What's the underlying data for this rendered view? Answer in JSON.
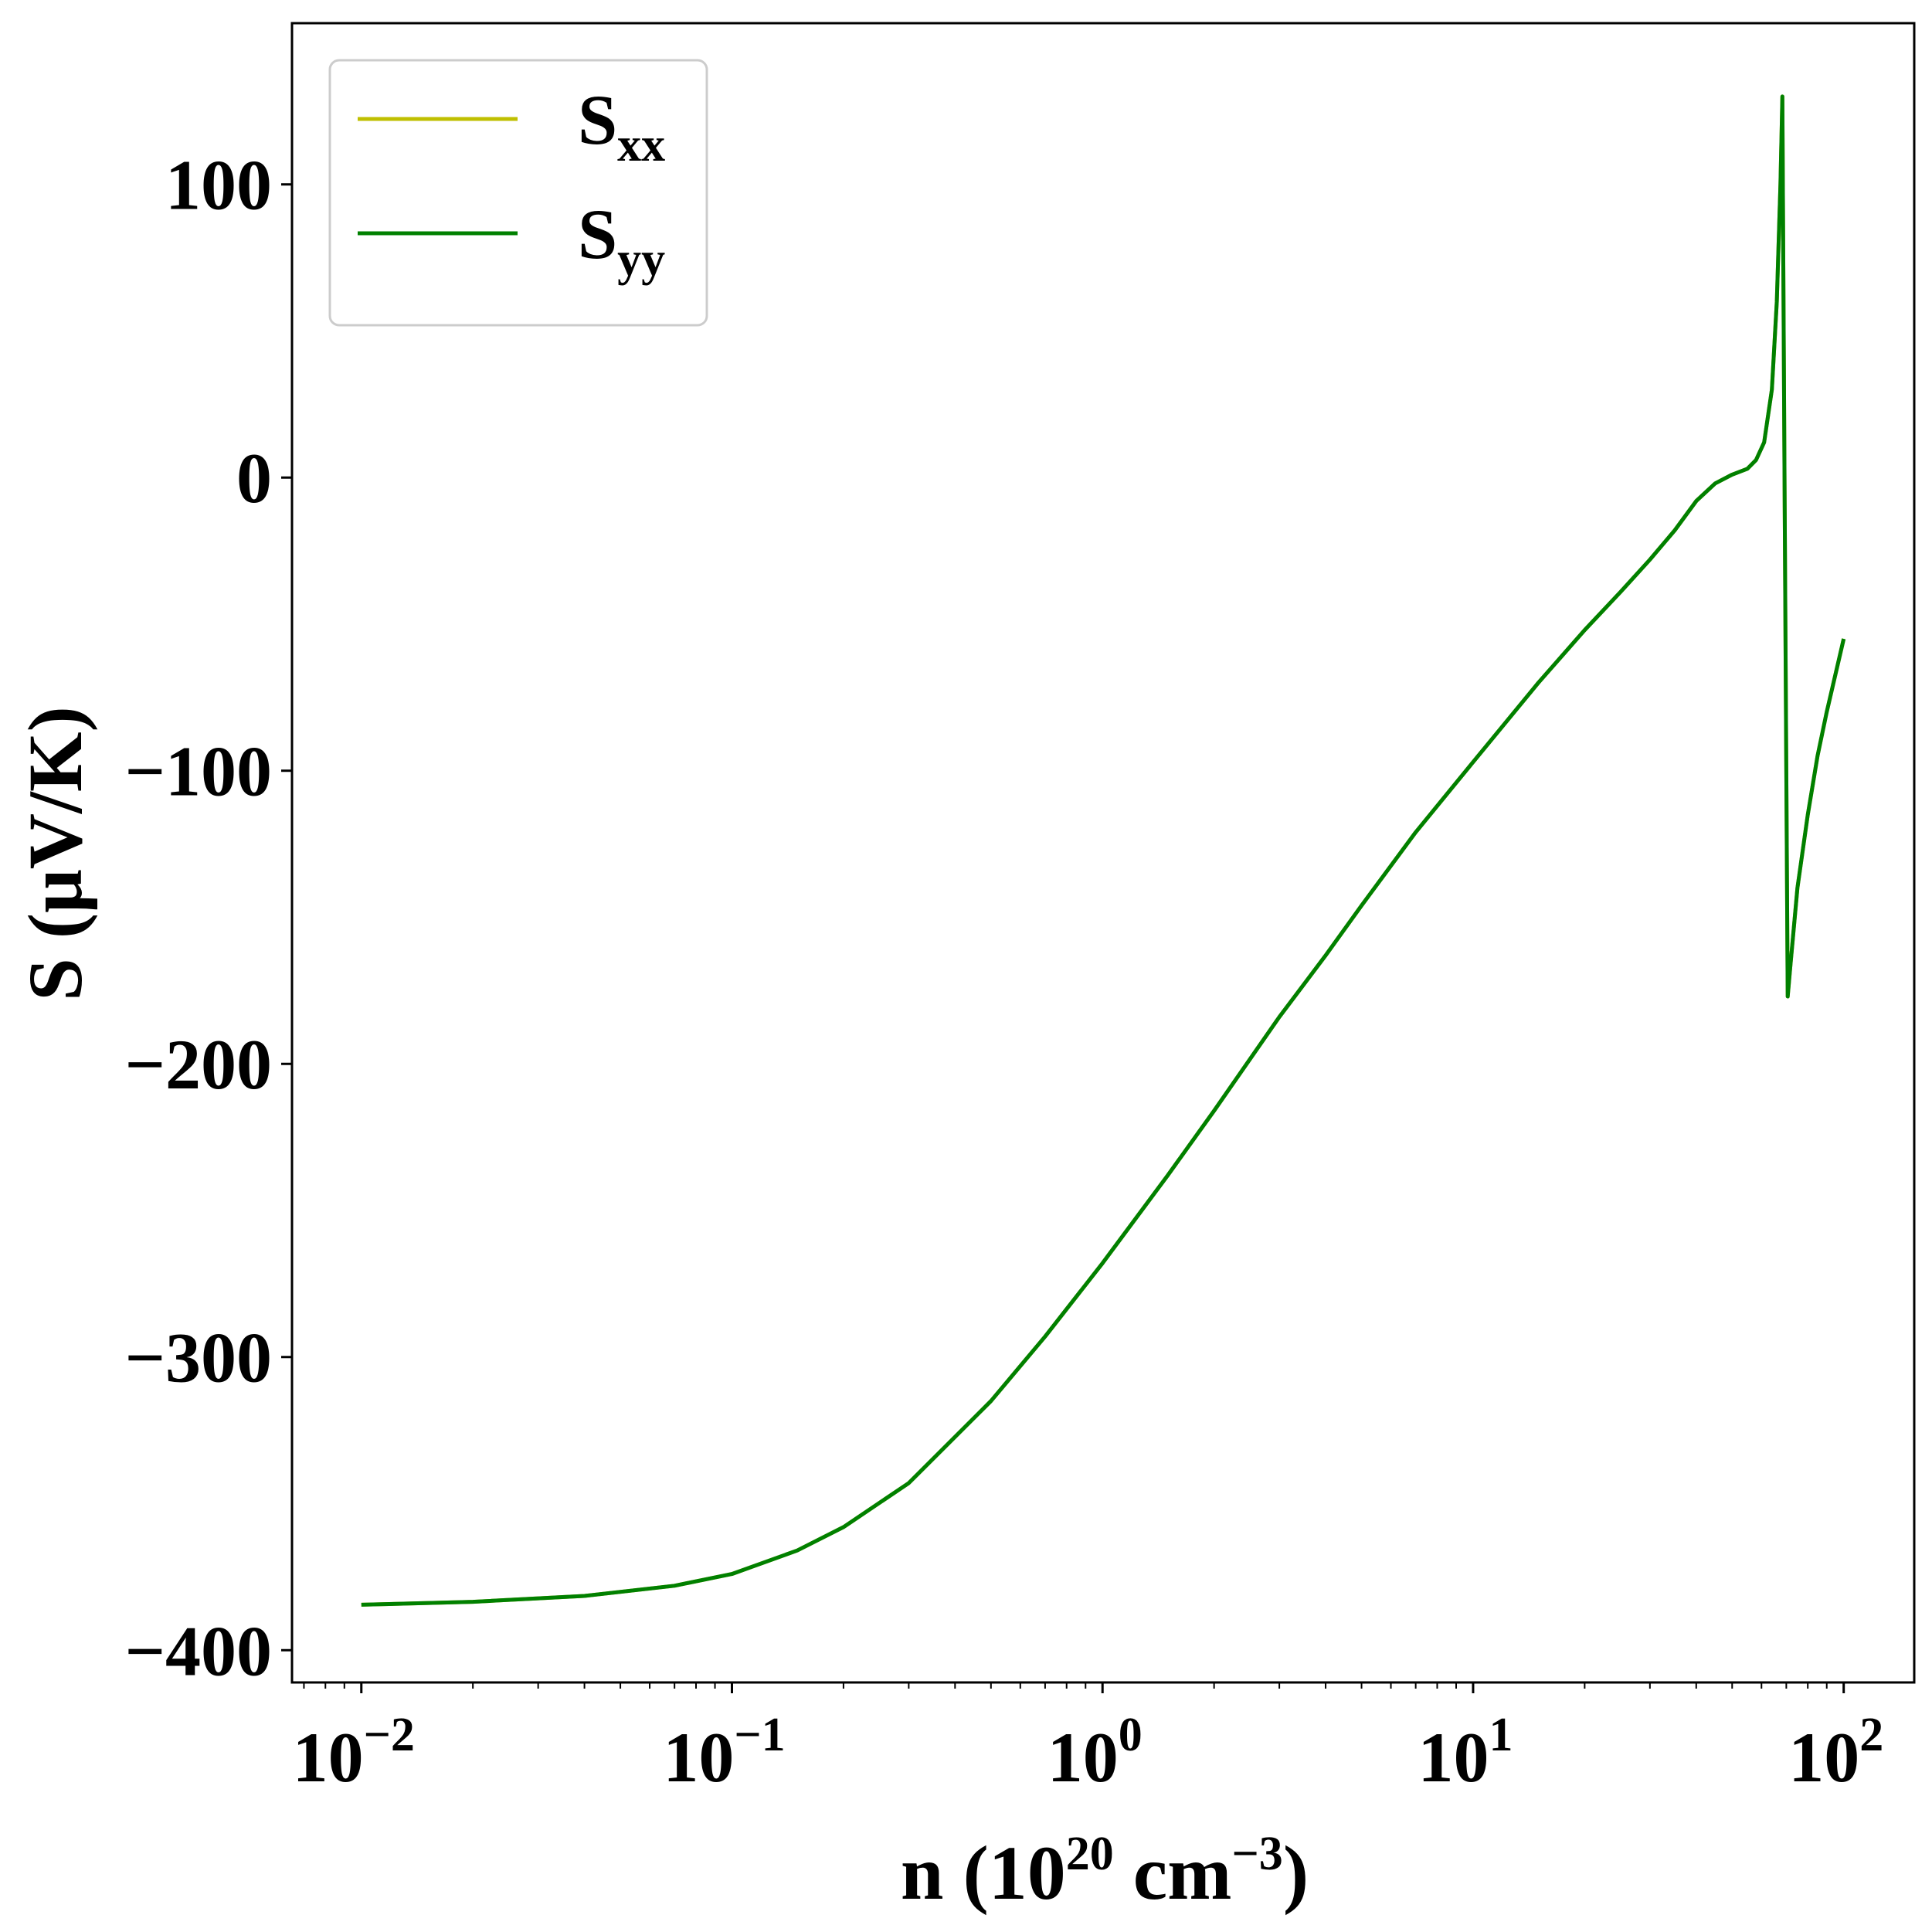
{
  "chart_data": {
    "type": "line",
    "xscale": "log",
    "xlim": [
      0.0065,
      155
    ],
    "ylim": [
      -411,
      155
    ],
    "xlabel": {
      "pre": "n (10",
      "sup1": "20",
      "mid": " cm",
      "sup2": "−3",
      "post": ")"
    },
    "ylabel": "S (μV/K)",
    "x_ticks": [
      {
        "value": 0.01,
        "base": "10",
        "exp": "−2"
      },
      {
        "value": 0.1,
        "base": "10",
        "exp": "−1"
      },
      {
        "value": 1,
        "base": "10",
        "exp": "0"
      },
      {
        "value": 10,
        "base": "10",
        "exp": "1"
      },
      {
        "value": 100,
        "base": "10",
        "exp": "2"
      }
    ],
    "y_ticks": [
      {
        "value": 100,
        "label": "100"
      },
      {
        "value": 0,
        "label": "0"
      },
      {
        "value": -100,
        "label": "−100"
      },
      {
        "value": -200,
        "label": "−200"
      },
      {
        "value": -300,
        "label": "−300"
      },
      {
        "value": -400,
        "label": "−400"
      }
    ],
    "legend": {
      "placement": "top-left"
    },
    "series": [
      {
        "name_main": "S",
        "name_sub": "xx",
        "color": "#bfbf00",
        "points": [
          [
            0.01,
            -384.5
          ],
          [
            0.02,
            -383.5
          ],
          [
            0.04,
            -381.5
          ],
          [
            0.07,
            -378
          ],
          [
            0.1,
            -374
          ],
          [
            0.15,
            -366
          ],
          [
            0.2,
            -358
          ],
          [
            0.3,
            -343
          ],
          [
            0.5,
            -315
          ],
          [
            0.7,
            -293
          ],
          [
            1,
            -268
          ],
          [
            1.5,
            -238
          ],
          [
            2,
            -216
          ],
          [
            3,
            -184
          ],
          [
            4,
            -163
          ],
          [
            5,
            -146
          ],
          [
            7,
            -121
          ],
          [
            10,
            -97
          ],
          [
            15,
            -70
          ],
          [
            20,
            -52
          ],
          [
            25,
            -39
          ],
          [
            30,
            -28
          ],
          [
            35,
            -18
          ],
          [
            40,
            -8
          ],
          [
            45,
            -2
          ],
          [
            50,
            1
          ],
          [
            55,
            3
          ],
          [
            58,
            6
          ],
          [
            61,
            12
          ],
          [
            64,
            30
          ],
          [
            66,
            60
          ],
          [
            67.5,
            100
          ],
          [
            68.3,
            130
          ],
          [
            69.3,
            -10
          ],
          [
            70.6,
            -177
          ],
          [
            72,
            -165
          ],
          [
            75,
            -140
          ],
          [
            80,
            -115
          ],
          [
            85,
            -95
          ],
          [
            90,
            -80
          ],
          [
            100,
            -55
          ]
        ]
      },
      {
        "name_main": "S",
        "name_sub": "yy",
        "color": "#008000",
        "points": [
          [
            0.01,
            -384.5
          ],
          [
            0.02,
            -383.5
          ],
          [
            0.04,
            -381.5
          ],
          [
            0.07,
            -378
          ],
          [
            0.1,
            -374
          ],
          [
            0.15,
            -366
          ],
          [
            0.2,
            -358
          ],
          [
            0.3,
            -343
          ],
          [
            0.5,
            -315
          ],
          [
            0.7,
            -293
          ],
          [
            1,
            -268
          ],
          [
            1.5,
            -238
          ],
          [
            2,
            -216
          ],
          [
            3,
            -184
          ],
          [
            4,
            -163
          ],
          [
            5,
            -146
          ],
          [
            7,
            -121
          ],
          [
            10,
            -97
          ],
          [
            15,
            -70
          ],
          [
            20,
            -52
          ],
          [
            25,
            -39
          ],
          [
            30,
            -28
          ],
          [
            35,
            -18
          ],
          [
            40,
            -8
          ],
          [
            45,
            -2
          ],
          [
            50,
            1
          ],
          [
            55,
            3
          ],
          [
            58,
            6
          ],
          [
            61,
            12
          ],
          [
            64,
            30
          ],
          [
            66,
            60
          ],
          [
            67.5,
            100
          ],
          [
            68.3,
            130
          ],
          [
            69.3,
            -10
          ],
          [
            70.6,
            -177
          ],
          [
            72,
            -165
          ],
          [
            75,
            -140
          ],
          [
            80,
            -115
          ],
          [
            85,
            -95
          ],
          [
            90,
            -80
          ],
          [
            100,
            -55
          ]
        ]
      }
    ]
  }
}
